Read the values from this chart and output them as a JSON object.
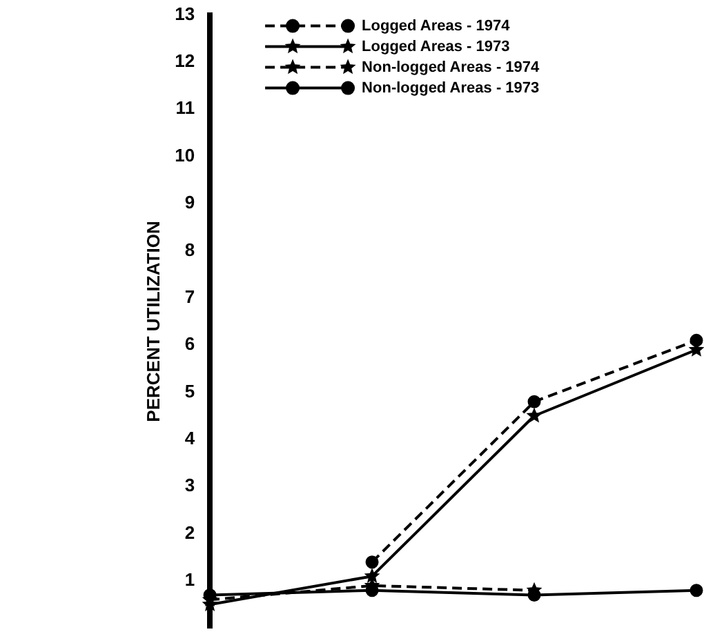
{
  "chart_data": {
    "type": "line",
    "ylabel": "PERCENT UTILIZATION",
    "categories": [
      null,
      null,
      null,
      null
    ],
    "series": [
      {
        "name": "Logged Areas - 1974",
        "color": "#000000",
        "marker": "circle",
        "line_style": "dashed",
        "values": [
          null,
          1.4,
          4.8,
          6.1
        ]
      },
      {
        "name": "Logged Areas - 1973",
        "color": "#000000",
        "marker": "star",
        "line_style": "solid",
        "values": [
          0.5,
          1.1,
          4.5,
          5.9
        ]
      },
      {
        "name": "Non-logged Areas - 1974",
        "color": "#000000",
        "marker": "star",
        "line_style": "dashed",
        "values": [
          0.6,
          0.9,
          0.8,
          null
        ]
      },
      {
        "name": "Non-logged Areas - 1973",
        "color": "#000000",
        "marker": "circle",
        "line_style": "solid",
        "values": [
          0.7,
          0.8,
          0.7,
          0.8
        ]
      }
    ],
    "ylim": [
      0,
      13
    ],
    "yticks": [
      1,
      2,
      3,
      4,
      5,
      6,
      7,
      8,
      9,
      10,
      11,
      12,
      13
    ],
    "grid": false,
    "legend": "top left"
  }
}
